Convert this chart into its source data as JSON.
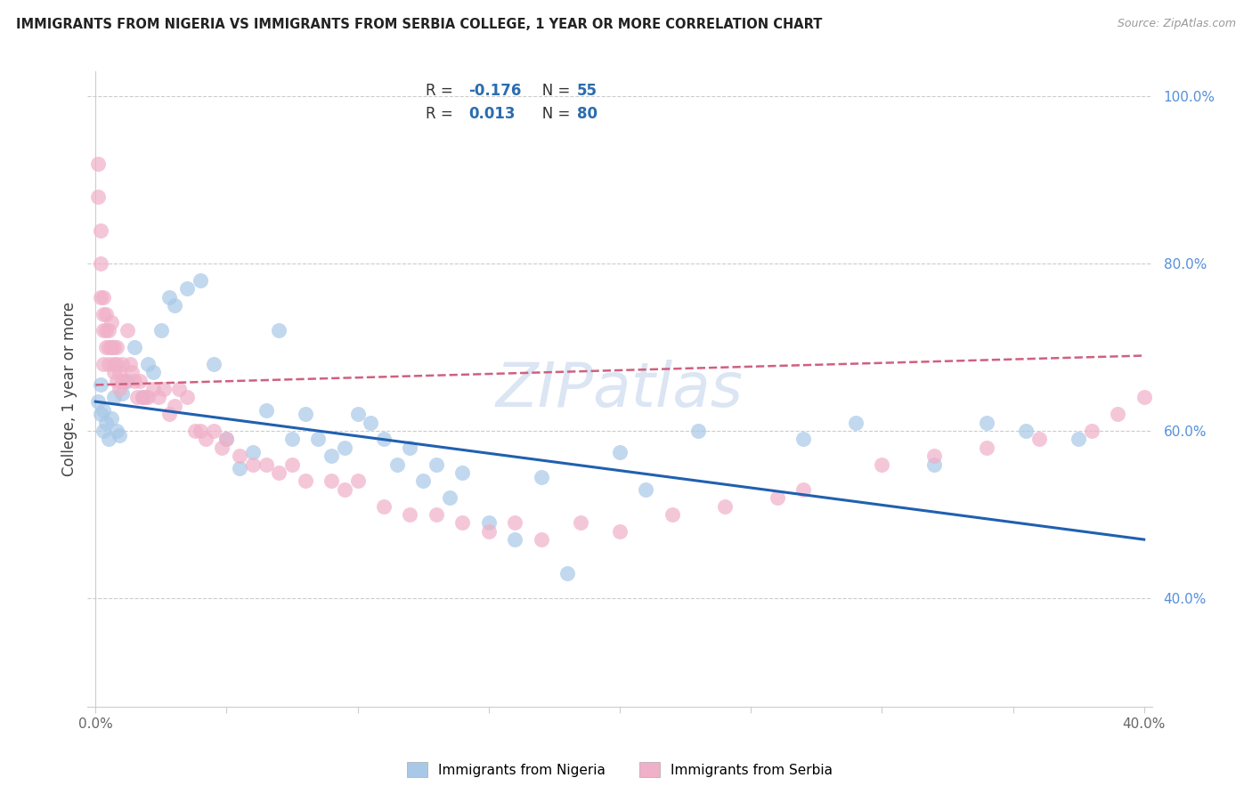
{
  "title": "IMMIGRANTS FROM NIGERIA VS IMMIGRANTS FROM SERBIA COLLEGE, 1 YEAR OR MORE CORRELATION CHART",
  "source": "Source: ZipAtlas.com",
  "xlabel_nigeria": "Immigrants from Nigeria",
  "xlabel_serbia": "Immigrants from Serbia",
  "ylabel": "College, 1 year or more",
  "xlim": [
    -0.003,
    0.403
  ],
  "ylim": [
    0.27,
    1.03
  ],
  "nigeria_R": -0.176,
  "nigeria_N": 55,
  "serbia_R": 0.013,
  "serbia_N": 80,
  "nigeria_color": "#a8c8e8",
  "nigeria_line_color": "#2060b0",
  "serbia_color": "#f0b0c8",
  "serbia_line_color": "#d06080",
  "background_color": "#ffffff",
  "grid_color": "#cccccc",
  "nigeria_x": [
    0.001,
    0.002,
    0.002,
    0.003,
    0.003,
    0.004,
    0.005,
    0.006,
    0.007,
    0.008,
    0.009,
    0.01,
    0.012,
    0.015,
    0.018,
    0.02,
    0.022,
    0.025,
    0.028,
    0.03,
    0.035,
    0.04,
    0.045,
    0.05,
    0.055,
    0.06,
    0.065,
    0.07,
    0.075,
    0.08,
    0.085,
    0.09,
    0.095,
    0.1,
    0.105,
    0.11,
    0.115,
    0.12,
    0.125,
    0.13,
    0.135,
    0.14,
    0.15,
    0.16,
    0.17,
    0.18,
    0.2,
    0.21,
    0.23,
    0.27,
    0.29,
    0.32,
    0.34,
    0.355,
    0.375
  ],
  "nigeria_y": [
    0.635,
    0.62,
    0.655,
    0.6,
    0.625,
    0.61,
    0.59,
    0.615,
    0.64,
    0.6,
    0.595,
    0.645,
    0.66,
    0.7,
    0.64,
    0.68,
    0.67,
    0.72,
    0.76,
    0.75,
    0.77,
    0.78,
    0.68,
    0.59,
    0.555,
    0.575,
    0.625,
    0.72,
    0.59,
    0.62,
    0.59,
    0.57,
    0.58,
    0.62,
    0.61,
    0.59,
    0.56,
    0.58,
    0.54,
    0.56,
    0.52,
    0.55,
    0.49,
    0.47,
    0.545,
    0.43,
    0.575,
    0.53,
    0.6,
    0.59,
    0.61,
    0.56,
    0.61,
    0.6,
    0.59
  ],
  "serbia_x": [
    0.001,
    0.001,
    0.002,
    0.002,
    0.002,
    0.003,
    0.003,
    0.003,
    0.003,
    0.004,
    0.004,
    0.004,
    0.005,
    0.005,
    0.005,
    0.006,
    0.006,
    0.006,
    0.007,
    0.007,
    0.007,
    0.008,
    0.008,
    0.008,
    0.009,
    0.009,
    0.01,
    0.01,
    0.011,
    0.012,
    0.013,
    0.014,
    0.015,
    0.016,
    0.017,
    0.018,
    0.019,
    0.02,
    0.022,
    0.024,
    0.026,
    0.028,
    0.03,
    0.032,
    0.035,
    0.038,
    0.04,
    0.042,
    0.045,
    0.048,
    0.05,
    0.055,
    0.06,
    0.065,
    0.07,
    0.075,
    0.08,
    0.09,
    0.095,
    0.1,
    0.11,
    0.12,
    0.13,
    0.14,
    0.15,
    0.16,
    0.17,
    0.185,
    0.2,
    0.22,
    0.24,
    0.26,
    0.27,
    0.3,
    0.32,
    0.34,
    0.36,
    0.38,
    0.39,
    0.4
  ],
  "serbia_y": [
    0.88,
    0.92,
    0.76,
    0.8,
    0.84,
    0.74,
    0.76,
    0.72,
    0.68,
    0.74,
    0.72,
    0.7,
    0.7,
    0.72,
    0.68,
    0.7,
    0.73,
    0.7,
    0.68,
    0.7,
    0.67,
    0.7,
    0.68,
    0.66,
    0.67,
    0.65,
    0.66,
    0.68,
    0.66,
    0.72,
    0.68,
    0.67,
    0.66,
    0.64,
    0.66,
    0.64,
    0.64,
    0.64,
    0.65,
    0.64,
    0.65,
    0.62,
    0.63,
    0.65,
    0.64,
    0.6,
    0.6,
    0.59,
    0.6,
    0.58,
    0.59,
    0.57,
    0.56,
    0.56,
    0.55,
    0.56,
    0.54,
    0.54,
    0.53,
    0.54,
    0.51,
    0.5,
    0.5,
    0.49,
    0.48,
    0.49,
    0.47,
    0.49,
    0.48,
    0.5,
    0.51,
    0.52,
    0.53,
    0.56,
    0.57,
    0.58,
    0.59,
    0.6,
    0.62,
    0.64
  ],
  "ng_line_x0": 0.0,
  "ng_line_x1": 0.4,
  "ng_line_y0": 0.635,
  "ng_line_y1": 0.47,
  "sr_line_x0": 0.0,
  "sr_line_x1": 0.4,
  "sr_line_y0": 0.655,
  "sr_line_y1": 0.69
}
